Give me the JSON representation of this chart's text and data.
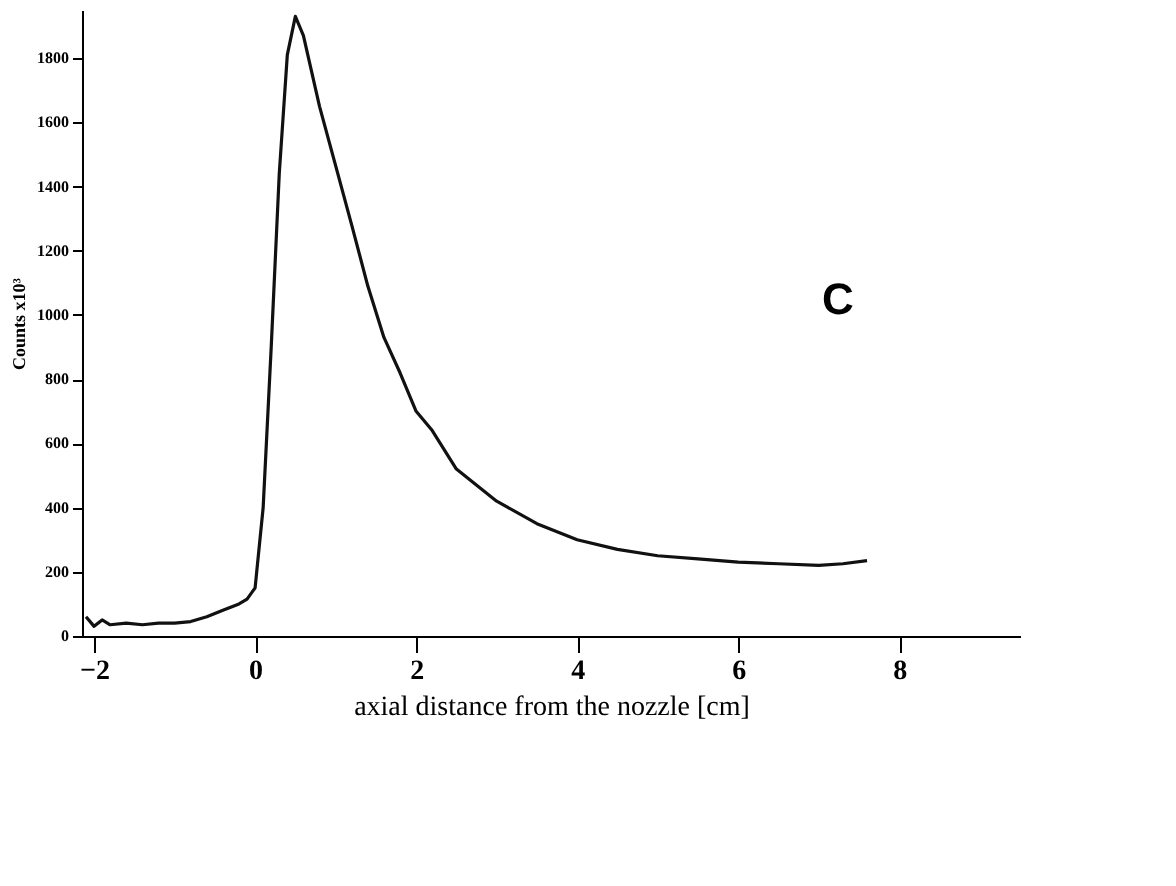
{
  "chart_data": {
    "type": "line",
    "xlabel": "axial distance from the nozzle  [cm]",
    "ylabel": "Counts x10³",
    "annotations": [
      "C"
    ],
    "x": [
      -2.1,
      -2.0,
      -1.9,
      -1.8,
      -1.6,
      -1.4,
      -1.2,
      -1.0,
      -0.8,
      -0.6,
      -0.4,
      -0.2,
      -0.1,
      0.0,
      0.1,
      0.2,
      0.3,
      0.4,
      0.5,
      0.6,
      0.8,
      1.0,
      1.2,
      1.4,
      1.6,
      1.8,
      2.0,
      2.2,
      2.5,
      3.0,
      3.5,
      4.0,
      4.5,
      5.0,
      5.5,
      6.0,
      6.5,
      7.0,
      7.3,
      7.6
    ],
    "series": [
      {
        "color": "#111111",
        "values": [
          60,
          30,
          50,
          35,
          40,
          35,
          40,
          40,
          45,
          60,
          80,
          100,
          115,
          150,
          400,
          900,
          1440,
          1810,
          1930,
          1870,
          1650,
          1465,
          1280,
          1090,
          930,
          820,
          700,
          640,
          520,
          420,
          350,
          300,
          270,
          250,
          240,
          230,
          225,
          220,
          225,
          235
        ]
      }
    ],
    "xlim": [
      -2.15,
      9.5
    ],
    "xticks": [
      -2,
      0,
      2,
      4,
      6,
      8
    ],
    "ylim": [
      0,
      1950
    ],
    "yticks": [
      0,
      200,
      400,
      600,
      800,
      1000,
      1200,
      1400,
      1600,
      1800
    ],
    "grid": false,
    "marker": "none",
    "line_style": "solid"
  }
}
